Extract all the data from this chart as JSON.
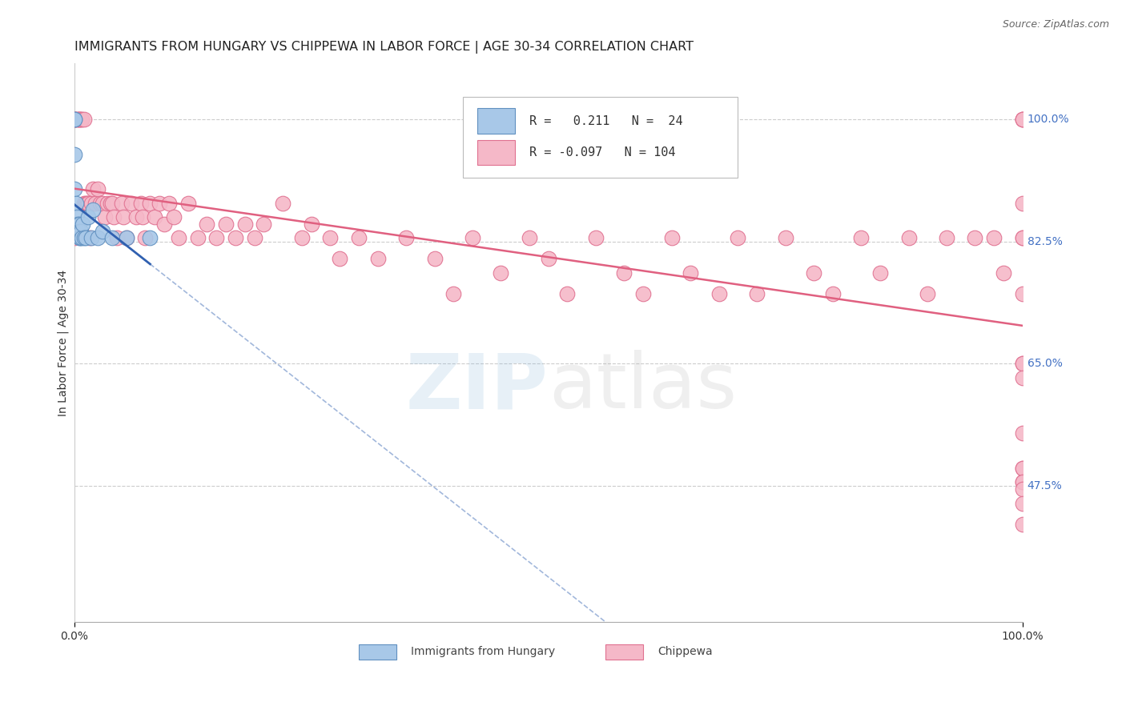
{
  "title": "IMMIGRANTS FROM HUNGARY VS CHIPPEWA IN LABOR FORCE | AGE 30-34 CORRELATION CHART",
  "source": "Source: ZipAtlas.com",
  "ylabel": "In Labor Force | Age 30-34",
  "ytick_labels": [
    "100.0%",
    "82.5%",
    "65.0%",
    "47.5%"
  ],
  "ytick_values": [
    1.0,
    0.825,
    0.65,
    0.475
  ],
  "xlim": [
    0.0,
    1.0
  ],
  "ylim": [
    0.28,
    1.08
  ],
  "hungary_color": "#a8c8e8",
  "chippewa_color": "#f5b8c8",
  "hungary_edge": "#6090c0",
  "chippewa_edge": "#e07090",
  "trend_hungary_color": "#3060b0",
  "trend_chippewa_color": "#e06080",
  "hungary_R": 0.211,
  "hungary_N": 24,
  "chippewa_R": -0.097,
  "chippewa_N": 104,
  "hungary_x": [
    0.0,
    0.0,
    0.0,
    0.0,
    0.002,
    0.003,
    0.004,
    0.005,
    0.005,
    0.005,
    0.006,
    0.007,
    0.008,
    0.009,
    0.01,
    0.012,
    0.015,
    0.018,
    0.02,
    0.025,
    0.03,
    0.04,
    0.055,
    0.08
  ],
  "hungary_y": [
    1.0,
    1.0,
    0.95,
    0.9,
    0.88,
    0.86,
    0.85,
    0.85,
    0.84,
    0.83,
    0.83,
    0.84,
    0.83,
    0.85,
    0.83,
    0.83,
    0.86,
    0.83,
    0.87,
    0.83,
    0.84,
    0.83,
    0.83,
    0.83
  ],
  "chippewa_x": [
    0.0,
    0.0,
    0.0,
    0.0,
    0.003,
    0.004,
    0.005,
    0.005,
    0.007,
    0.008,
    0.01,
    0.01,
    0.012,
    0.014,
    0.015,
    0.016,
    0.018,
    0.02,
    0.022,
    0.025,
    0.027,
    0.03,
    0.032,
    0.035,
    0.038,
    0.04,
    0.042,
    0.045,
    0.05,
    0.052,
    0.055,
    0.06,
    0.065,
    0.07,
    0.072,
    0.075,
    0.08,
    0.085,
    0.09,
    0.095,
    0.1,
    0.105,
    0.11,
    0.12,
    0.13,
    0.14,
    0.15,
    0.16,
    0.17,
    0.18,
    0.19,
    0.2,
    0.22,
    0.24,
    0.25,
    0.27,
    0.28,
    0.3,
    0.32,
    0.35,
    0.38,
    0.4,
    0.42,
    0.45,
    0.48,
    0.5,
    0.52,
    0.55,
    0.58,
    0.6,
    0.63,
    0.65,
    0.68,
    0.7,
    0.72,
    0.75,
    0.78,
    0.8,
    0.83,
    0.85,
    0.88,
    0.9,
    0.92,
    0.95,
    0.97,
    0.98,
    1.0,
    1.0,
    1.0,
    1.0,
    1.0,
    1.0,
    1.0,
    1.0,
    1.0,
    1.0,
    1.0,
    1.0,
    1.0,
    1.0,
    1.0,
    1.0,
    1.0,
    1.0
  ],
  "chippewa_y": [
    1.0,
    1.0,
    1.0,
    0.83,
    1.0,
    1.0,
    1.0,
    1.0,
    1.0,
    1.0,
    1.0,
    0.88,
    0.88,
    0.88,
    0.88,
    0.83,
    0.88,
    0.9,
    0.88,
    0.9,
    0.88,
    0.88,
    0.86,
    0.88,
    0.88,
    0.88,
    0.86,
    0.83,
    0.88,
    0.86,
    0.83,
    0.88,
    0.86,
    0.88,
    0.86,
    0.83,
    0.88,
    0.86,
    0.88,
    0.85,
    0.88,
    0.86,
    0.83,
    0.88,
    0.83,
    0.85,
    0.83,
    0.85,
    0.83,
    0.85,
    0.83,
    0.85,
    0.88,
    0.83,
    0.85,
    0.83,
    0.8,
    0.83,
    0.8,
    0.83,
    0.8,
    0.75,
    0.83,
    0.78,
    0.83,
    0.8,
    0.75,
    0.83,
    0.78,
    0.75,
    0.83,
    0.78,
    0.75,
    0.83,
    0.75,
    0.83,
    0.78,
    0.75,
    0.83,
    0.78,
    0.83,
    0.75,
    0.83,
    0.83,
    0.83,
    0.78,
    1.0,
    1.0,
    1.0,
    0.88,
    0.83,
    0.83,
    0.75,
    0.65,
    0.65,
    0.63,
    0.55,
    0.5,
    0.48,
    0.5,
    0.48,
    0.47,
    0.45,
    0.42
  ]
}
